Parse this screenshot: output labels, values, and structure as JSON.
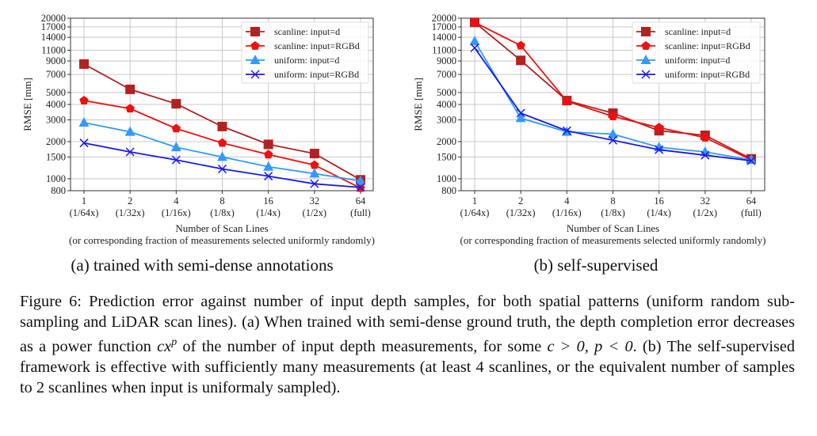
{
  "chart_data": [
    {
      "type": "line",
      "panel": "a",
      "ylabel": "RMSE [mm]",
      "xlabel": "Number of Scan Lines",
      "xlabel2": "(or corresponding fraction of measurements selected uniformly randomly)",
      "categories": [
        "1",
        "2",
        "4",
        "8",
        "16",
        "32",
        "64"
      ],
      "category_sublabels": [
        "(1/64x)",
        "(1/32x)",
        "(1/16x)",
        "(1/8x)",
        "(1/4x)",
        "(1/2x)",
        "(full)"
      ],
      "yscale": "log",
      "ylim": [
        800,
        20000
      ],
      "yticks": [
        800,
        1000,
        1500,
        2000,
        3000,
        4000,
        5000,
        7000,
        9000,
        11000,
        14000,
        17000,
        20000
      ],
      "grid": true,
      "legend": "top-right",
      "series": [
        {
          "name": "scanline: input=d",
          "color": "#b22222",
          "marker": "square",
          "values": [
            8500,
            5300,
            4050,
            2650,
            1900,
            1600,
            980
          ]
        },
        {
          "name": "scanline: input=RGBd",
          "color": "#f01010",
          "marker": "pentagon",
          "values": [
            4300,
            3700,
            2550,
            1950,
            1570,
            1290,
            840
          ]
        },
        {
          "name": "uniform: input=d",
          "color": "#3399ff",
          "marker": "triangle",
          "values": [
            2850,
            2400,
            1800,
            1500,
            1250,
            1100,
            960
          ]
        },
        {
          "name": "uniform: input=RGBd",
          "color": "#1a1aee",
          "marker": "x",
          "values": [
            1950,
            1650,
            1420,
            1200,
            1050,
            910,
            850
          ]
        }
      ]
    },
    {
      "type": "line",
      "panel": "b",
      "ylabel": "RMSE [mm]",
      "xlabel": "Number of Scan Lines",
      "xlabel2": "(or corresponding fraction of measurements selected uniformly randomly)",
      "categories": [
        "1",
        "2",
        "4",
        "8",
        "16",
        "32",
        "64"
      ],
      "category_sublabels": [
        "(1/64x)",
        "(1/32x)",
        "(1/16x)",
        "(1/8x)",
        "(1/4x)",
        "(1/2x)",
        "(full)"
      ],
      "yscale": "log",
      "ylim": [
        800,
        20000
      ],
      "yticks": [
        800,
        1000,
        1500,
        2000,
        3000,
        4000,
        5000,
        7000,
        9000,
        11000,
        14000,
        17000,
        20000
      ],
      "grid": true,
      "legend": "top-right",
      "series": [
        {
          "name": "scanline: input=d",
          "color": "#b22222",
          "marker": "square",
          "values": [
            18500,
            9100,
            4300,
            3400,
            2450,
            2250,
            1450
          ]
        },
        {
          "name": "scanline: input=RGBd",
          "color": "#f01010",
          "marker": "pentagon",
          "values": [
            18500,
            12000,
            4250,
            3200,
            2600,
            2150,
            1420
          ]
        },
        {
          "name": "uniform: input=d",
          "color": "#3399ff",
          "marker": "triangle",
          "values": [
            13000,
            3100,
            2400,
            2300,
            1800,
            1650,
            1420
          ]
        },
        {
          "name": "uniform: input=RGBd",
          "color": "#1a1aee",
          "marker": "x",
          "values": [
            11500,
            3400,
            2450,
            2050,
            1720,
            1550,
            1400
          ]
        }
      ]
    }
  ],
  "subcaptions": {
    "a": "(a) trained with semi-dense annotations",
    "b": "(b) self-supervised"
  },
  "caption": {
    "p1": "Figure 6: Prediction error against number of input depth samples, for both spatial patterns (uniform random sub-sampling and LiDAR scan lines). (a) When trained with semi-dense ground truth, the depth completion error decreases as a power function ",
    "math1_base": "cx",
    "math1_exp": "p",
    "p2": " of the number of input depth measurements, for some ",
    "math2": "c > 0, p < 0",
    "p3": ". (b) The self-supervised framework is effective with sufficiently many measurements (at least 4 scanlines, or the equivalent number of samples to 2 scanlines when input is uniformaly sampled)."
  }
}
